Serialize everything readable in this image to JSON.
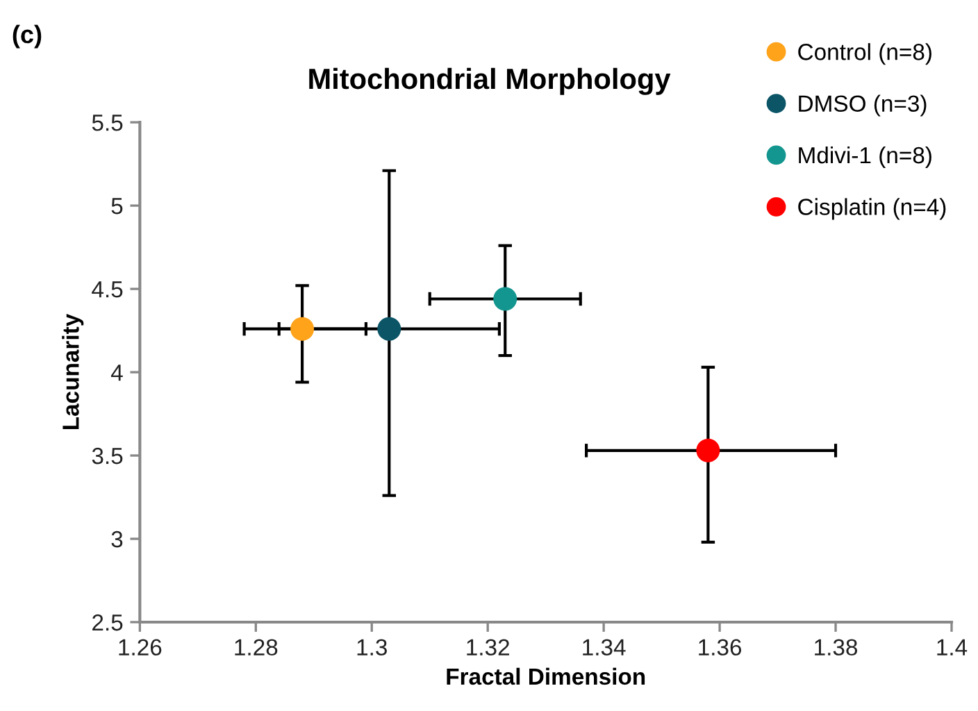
{
  "chart_data": {
    "type": "scatter",
    "title": "Mitochondrial Morphology",
    "xlabel": "Fractal Dimension",
    "ylabel": "Lacunarity",
    "annotations": [
      "(c)"
    ],
    "series": [
      {
        "name": "Control (n=8)",
        "color": "#ffa31a",
        "x": [
          1.288
        ],
        "values": [
          4.26
        ],
        "errors": [
          [
            3.94,
            4.52
          ]
        ],
        "xerrors": [
          [
            1.278,
            1.299
          ]
        ]
      },
      {
        "name": "DMSO (n=3)",
        "color": "#0b5567",
        "x": [
          1.303
        ],
        "values": [
          4.26
        ],
        "errors": [
          [
            3.26,
            5.21
          ]
        ],
        "xerrors": [
          [
            1.284,
            1.322
          ]
        ]
      },
      {
        "name": "Mdivi-1 (n=8)",
        "color": "#13968f",
        "x": [
          1.323
        ],
        "values": [
          4.44
        ],
        "errors": [
          [
            4.1,
            4.76
          ]
        ],
        "xerrors": [
          [
            1.31,
            1.336
          ]
        ]
      },
      {
        "name": "Cisplatin (n=4)",
        "color": "#ff0000",
        "x": [
          1.358
        ],
        "values": [
          3.53
        ],
        "errors": [
          [
            2.98,
            4.03
          ]
        ],
        "xerrors": [
          [
            1.337,
            1.38
          ]
        ]
      }
    ],
    "xlim": [
      1.26,
      1.4
    ],
    "xticks": [
      1.26,
      1.28,
      {
        "value": 1.3,
        "label": "1.3"
      },
      1.32,
      1.34,
      1.36,
      1.38,
      {
        "value": 1.4,
        "label": "1.4"
      }
    ],
    "ylim": [
      2.5,
      5.5
    ],
    "yticks": [
      2.5,
      {
        "value": 3,
        "label": "3"
      },
      3.5,
      {
        "value": 4,
        "label": "4"
      },
      4.5,
      {
        "value": 5,
        "label": "5"
      },
      5.5
    ],
    "grid": false,
    "legend": "top right",
    "marker": "circle"
  }
}
